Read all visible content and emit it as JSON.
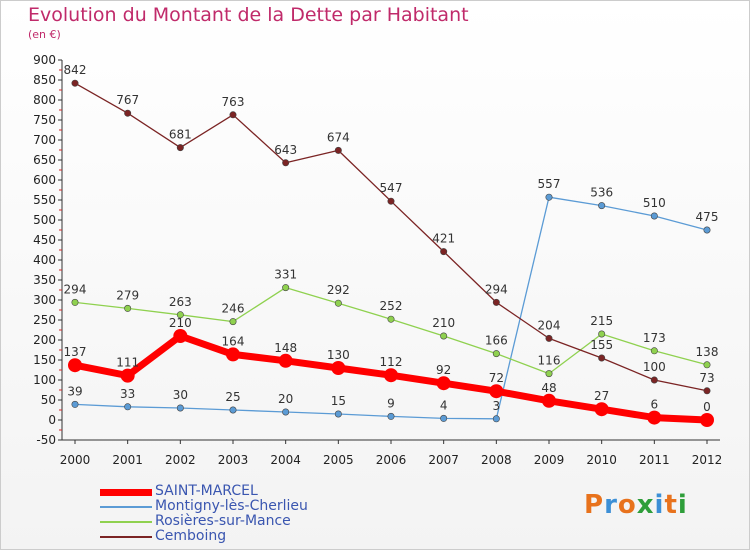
{
  "header": {
    "title": "Evolution du Montant de la Dette par Habitant",
    "subtitle": "(en €)"
  },
  "logo": {
    "text": "Proxiti",
    "colors": [
      "#e8721c",
      "#3c8fd6",
      "#e8721c",
      "#2e9e3a",
      "#3c8fd6",
      "#e8721c",
      "#2e9e3a"
    ]
  },
  "chart_data": {
    "type": "line",
    "title": "Evolution du Montant de la Dette par Habitant",
    "subtitle": "(en €)",
    "xlabel": "",
    "ylabel": "",
    "x": [
      "2000",
      "2001",
      "2002",
      "2003",
      "2004",
      "2005",
      "2006",
      "2007",
      "2008",
      "2009",
      "2010",
      "2011",
      "2012"
    ],
    "ylim": [
      -50,
      900
    ],
    "yticks": [
      -50,
      0,
      50,
      100,
      150,
      200,
      250,
      300,
      350,
      400,
      450,
      500,
      550,
      600,
      650,
      700,
      750,
      800,
      850,
      900
    ],
    "grid": false,
    "legend_position": "bottom-left",
    "series": [
      {
        "name": "SAINT-MARCEL",
        "color": "#ff0000",
        "emphasis": true,
        "values": [
          137,
          111,
          210,
          164,
          148,
          130,
          112,
          92,
          72,
          48,
          27,
          6,
          0
        ],
        "labels": [
          "137",
          "111",
          "210",
          "164",
          "148",
          "130",
          "112",
          "92",
          "72",
          "48",
          "27",
          "6",
          "0"
        ]
      },
      {
        "name": "Montigny-lès-Cherlieu",
        "color": "#5b9bd5",
        "values": [
          39,
          33,
          30,
          25,
          20,
          15,
          9,
          4,
          3,
          557,
          536,
          510,
          475
        ],
        "labels": [
          "39",
          "33",
          "30",
          "25",
          "20",
          "15",
          "9",
          "4",
          "3",
          "557",
          "536",
          "510",
          "475"
        ]
      },
      {
        "name": "Rosières-sur-Mance",
        "color": "#8fd14f",
        "values": [
          294,
          279,
          263,
          246,
          331,
          292,
          252,
          210,
          166,
          116,
          215,
          173,
          138
        ],
        "labels": [
          "294",
          "279",
          "263",
          "246",
          "331",
          "292",
          "252",
          "210",
          "166",
          "116",
          "215",
          "173",
          "138"
        ]
      },
      {
        "name": "Cemboing",
        "color": "#7b2424",
        "values": [
          842,
          767,
          681,
          763,
          643,
          674,
          547,
          421,
          294,
          204,
          155,
          100,
          73
        ],
        "labels": [
          "842",
          "767",
          "681",
          "763",
          "643",
          "674",
          "547",
          "421",
          "294",
          "204",
          "155",
          "100",
          "73"
        ]
      }
    ]
  }
}
